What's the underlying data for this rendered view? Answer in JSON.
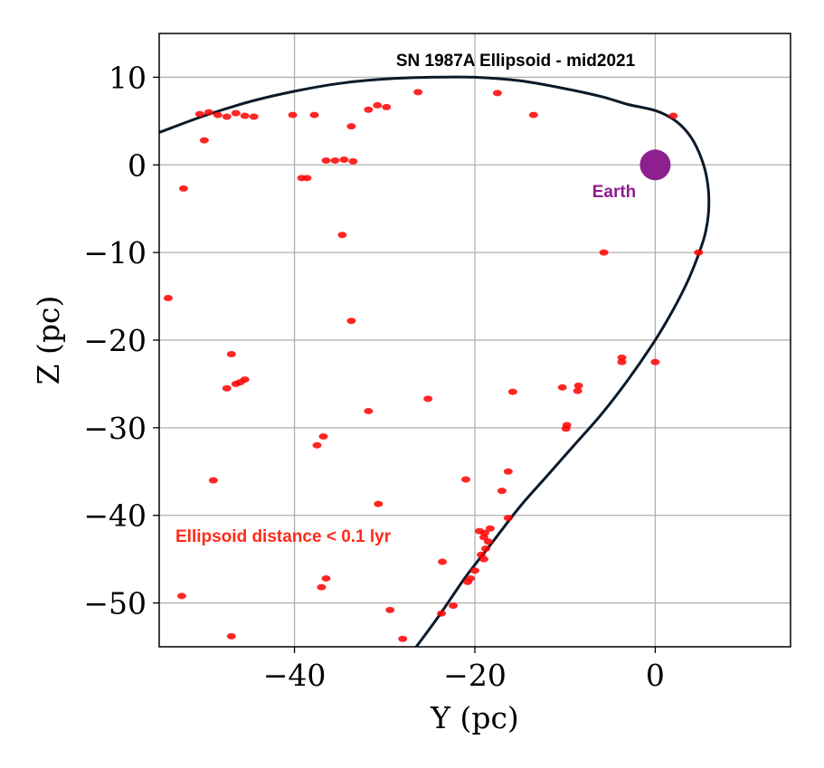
{
  "chart_data": {
    "type": "scatter",
    "title": "SN 1987A Ellipsoid - mid2021",
    "xlabel": "Y (pc)",
    "ylabel": "Z (pc)",
    "xlim": [
      -55,
      15
    ],
    "ylim": [
      -55,
      15
    ],
    "xticks": [
      -40,
      -20,
      0
    ],
    "yticks": [
      10,
      0,
      -10,
      -20,
      -30,
      -40,
      -50
    ],
    "xtick_labels": [
      "−40",
      "−20",
      "0"
    ],
    "ytick_labels": [
      "10",
      "0",
      "−10",
      "−20",
      "−30",
      "−40",
      "−50"
    ],
    "grid": true,
    "colors": {
      "stars": "#ff0000",
      "curve": "#0b1a2a",
      "earth": "#8e1f8e",
      "note": "#ff2a1a",
      "grid": "#b0b0b0"
    },
    "annotations": {
      "earth_label": "Earth",
      "distance_note": "Ellipsoid distance < 0.1 lyr"
    },
    "earth": {
      "x": 0,
      "y": 0
    },
    "ellipsoid_curve": [
      [
        -55,
        3.7
      ],
      [
        -50,
        5.6
      ],
      [
        -45,
        7.2
      ],
      [
        -40,
        8.4
      ],
      [
        -35,
        9.3
      ],
      [
        -30,
        9.8
      ],
      [
        -25,
        10.0
      ],
      [
        -20,
        10.0
      ],
      [
        -15,
        9.6
      ],
      [
        -10,
        8.7
      ],
      [
        -6,
        7.8
      ],
      [
        -3,
        6.9
      ],
      [
        0,
        6.2
      ],
      [
        2,
        5.2
      ],
      [
        3.5,
        3.8
      ],
      [
        4.6,
        2.0
      ],
      [
        5.5,
        -0.5
      ],
      [
        5.9,
        -3.0
      ],
      [
        5.9,
        -5.5
      ],
      [
        5.5,
        -8.0
      ],
      [
        4.7,
        -10.5
      ],
      [
        3.5,
        -13.5
      ],
      [
        2.0,
        -16.5
      ],
      [
        0.0,
        -20.0
      ],
      [
        -3,
        -24.5
      ],
      [
        -6,
        -28.5
      ],
      [
        -9,
        -32.0
      ],
      [
        -12,
        -35.5
      ],
      [
        -15,
        -39.0
      ],
      [
        -18,
        -43.0
      ],
      [
        -21,
        -47.0
      ],
      [
        -24,
        -51.5
      ],
      [
        -26.5,
        -55.0
      ]
    ],
    "points": [
      [
        -50.5,
        5.8
      ],
      [
        -49.5,
        6.0
      ],
      [
        -48.5,
        5.7
      ],
      [
        -47.5,
        5.5
      ],
      [
        -46.5,
        5.9
      ],
      [
        -45.5,
        5.6
      ],
      [
        -44.5,
        5.5
      ],
      [
        -50.0,
        2.8
      ],
      [
        -40.2,
        5.7
      ],
      [
        -37.8,
        5.7
      ],
      [
        -33.7,
        4.4
      ],
      [
        -31.8,
        6.3
      ],
      [
        -30.8,
        6.8
      ],
      [
        -29.8,
        6.6
      ],
      [
        -26.3,
        8.3
      ],
      [
        -17.5,
        8.2
      ],
      [
        -13.5,
        5.7
      ],
      [
        2.0,
        5.6
      ],
      [
        -36.5,
        0.5
      ],
      [
        -35.5,
        0.5
      ],
      [
        -34.5,
        0.6
      ],
      [
        -33.5,
        0.4
      ],
      [
        -38.6,
        -1.5
      ],
      [
        -39.2,
        -1.5
      ],
      [
        -52.3,
        -2.7
      ],
      [
        -34.7,
        -8.0
      ],
      [
        -5.7,
        -10.0
      ],
      [
        4.8,
        -10.0
      ],
      [
        -54.0,
        -15.2
      ],
      [
        -33.7,
        -17.8
      ],
      [
        -47.0,
        -21.6
      ],
      [
        -3.7,
        -22.0
      ],
      [
        -3.7,
        -22.5
      ],
      [
        0.0,
        -22.5
      ],
      [
        -47.5,
        -25.5
      ],
      [
        -46.5,
        -25.0
      ],
      [
        -45.5,
        -24.5
      ],
      [
        -46.0,
        -24.8
      ],
      [
        -25.2,
        -26.7
      ],
      [
        -15.8,
        -25.9
      ],
      [
        -10.3,
        -25.4
      ],
      [
        -8.5,
        -25.2
      ],
      [
        -8.6,
        -25.8
      ],
      [
        -31.8,
        -28.1
      ],
      [
        -9.8,
        -29.7
      ],
      [
        -9.9,
        -30.1
      ],
      [
        -37.5,
        -32.0
      ],
      [
        -36.8,
        -31.0
      ],
      [
        -49.0,
        -36.0
      ],
      [
        -21.0,
        -35.9
      ],
      [
        -16.3,
        -35.0
      ],
      [
        -17.0,
        -37.2
      ],
      [
        -30.7,
        -38.7
      ],
      [
        -16.3,
        -40.3
      ],
      [
        -19.5,
        -41.8
      ],
      [
        -19.0,
        -42.5
      ],
      [
        -18.5,
        -43.0
      ],
      [
        -19.3,
        -44.5
      ],
      [
        -19.0,
        -45.0
      ],
      [
        -18.8,
        -43.8
      ],
      [
        -18.3,
        -41.5
      ],
      [
        -20.0,
        -46.3
      ],
      [
        -20.5,
        -47.2
      ],
      [
        -20.8,
        -47.6
      ],
      [
        -18.9,
        -42.0
      ],
      [
        -23.6,
        -45.3
      ],
      [
        -52.5,
        -49.2
      ],
      [
        -37.0,
        -48.2
      ],
      [
        -36.5,
        -47.2
      ],
      [
        -22.4,
        -50.3
      ],
      [
        -29.4,
        -50.8
      ],
      [
        -23.7,
        -51.2
      ],
      [
        -47.0,
        -53.8
      ],
      [
        -28.0,
        -54.1
      ]
    ]
  }
}
